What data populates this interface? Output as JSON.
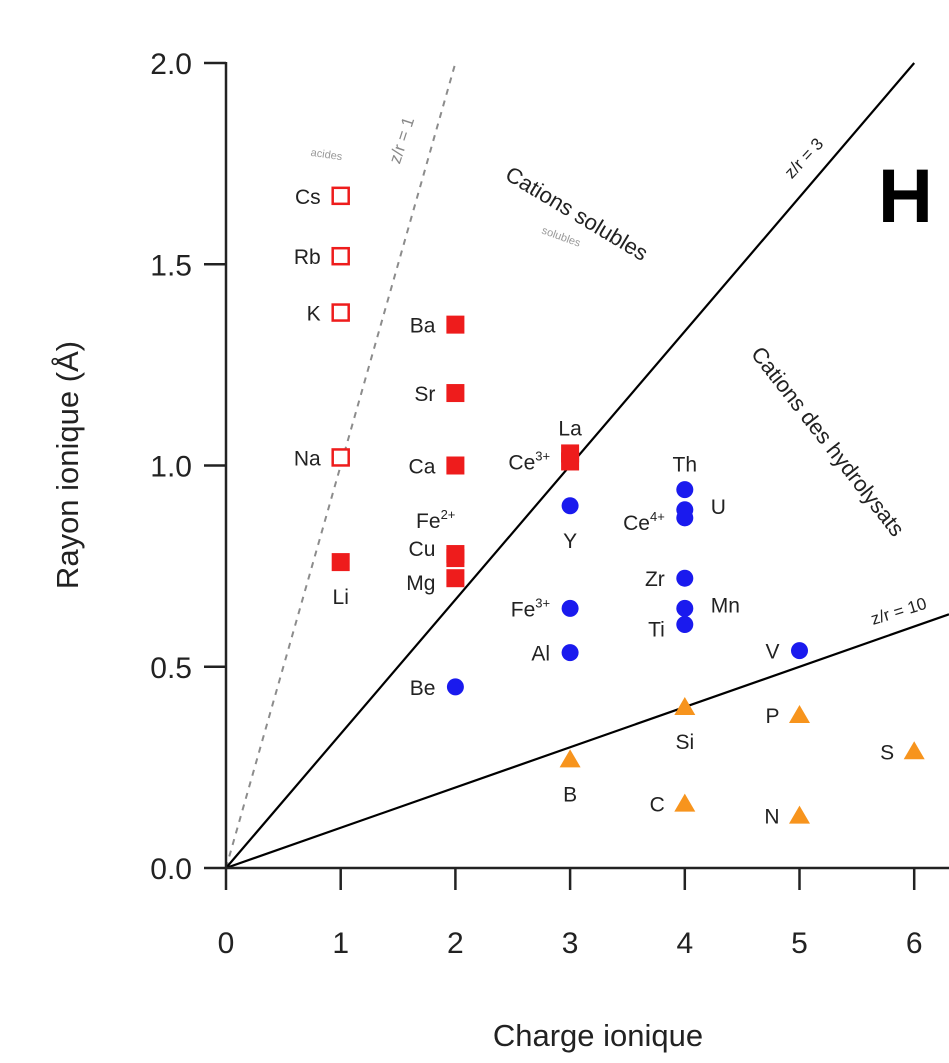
{
  "chart_data": {
    "type": "scatter",
    "xlabel": "Charge ionique",
    "ylabel": "Rayon ionique (Å)",
    "xlim": [
      0,
      6
    ],
    "ylim": [
      0,
      2
    ],
    "xticks": [
      "0",
      "1",
      "2",
      "3",
      "4",
      "5",
      "6"
    ],
    "yticks": [
      "0.0",
      "0.5",
      "1.0",
      "1.5",
      "2.0"
    ],
    "grid": false,
    "colors": {
      "red": "#ee1c1c",
      "blue": "#1a1aee",
      "orange": "#f7941d",
      "dashed_line": "#8c8c8c",
      "line": "#000000"
    },
    "lines": [
      {
        "ratio": 1,
        "label": "z/r = 1",
        "style": "dashed"
      },
      {
        "ratio": 3,
        "label": "z/r = 3",
        "style": "solid"
      },
      {
        "ratio": 10,
        "label": "z/r = 10",
        "style": "solid"
      }
    ],
    "region_labels": {
      "soluble": "Cations solubles",
      "hydrolysis": "Cations des hydrolysats",
      "faint_1": "solubles",
      "faint_2": "acides"
    },
    "series": [
      {
        "marker": "open-square",
        "color": "red",
        "points": [
          {
            "label": "Cs",
            "x": 1,
            "y": 1.67
          },
          {
            "label": "Rb",
            "x": 1,
            "y": 1.52
          },
          {
            "label": "K",
            "x": 1,
            "y": 1.38
          },
          {
            "label": "Na",
            "x": 1,
            "y": 1.02
          }
        ]
      },
      {
        "marker": "filled-square",
        "color": "red",
        "points": [
          {
            "label": "Li",
            "x": 1,
            "y": 0.76
          },
          {
            "label": "Ba",
            "x": 2,
            "y": 1.35
          },
          {
            "label": "Sr",
            "x": 2,
            "y": 1.18
          },
          {
            "label": "Ca",
            "x": 2,
            "y": 1.0
          },
          {
            "label": "Fe2+",
            "x": 2,
            "y": 0.78
          },
          {
            "label": "Cu",
            "x": 2,
            "y": 0.77
          },
          {
            "label": "Mg",
            "x": 2,
            "y": 0.72
          },
          {
            "label": "La",
            "x": 3,
            "y": 1.03
          },
          {
            "label": "Ce3+",
            "x": 3,
            "y": 1.01
          }
        ]
      },
      {
        "marker": "circle",
        "color": "blue",
        "points": [
          {
            "label": "Be",
            "x": 2,
            "y": 0.45
          },
          {
            "label": "Y",
            "x": 3,
            "y": 0.9
          },
          {
            "label": "Fe3+",
            "x": 3,
            "y": 0.645
          },
          {
            "label": "Al",
            "x": 3,
            "y": 0.535
          },
          {
            "label": "Th",
            "x": 4,
            "y": 0.94
          },
          {
            "label": "U",
            "x": 4,
            "y": 0.89
          },
          {
            "label": "Ce4+",
            "x": 4,
            "y": 0.87
          },
          {
            "label": "Zr",
            "x": 4,
            "y": 0.72
          },
          {
            "label": "Mn",
            "x": 4,
            "y": 0.645
          },
          {
            "label": "Ti",
            "x": 4,
            "y": 0.605
          },
          {
            "label": "V",
            "x": 5,
            "y": 0.54
          }
        ]
      },
      {
        "marker": "triangle",
        "color": "orange",
        "points": [
          {
            "label": "Si",
            "x": 4,
            "y": 0.4
          },
          {
            "label": "P",
            "x": 5,
            "y": 0.38
          },
          {
            "label": "S",
            "x": 6,
            "y": 0.29
          },
          {
            "label": "B",
            "x": 3,
            "y": 0.27
          },
          {
            "label": "C",
            "x": 4,
            "y": 0.16
          },
          {
            "label": "N",
            "x": 5,
            "y": 0.13
          }
        ]
      }
    ],
    "corner_letter": "H"
  }
}
